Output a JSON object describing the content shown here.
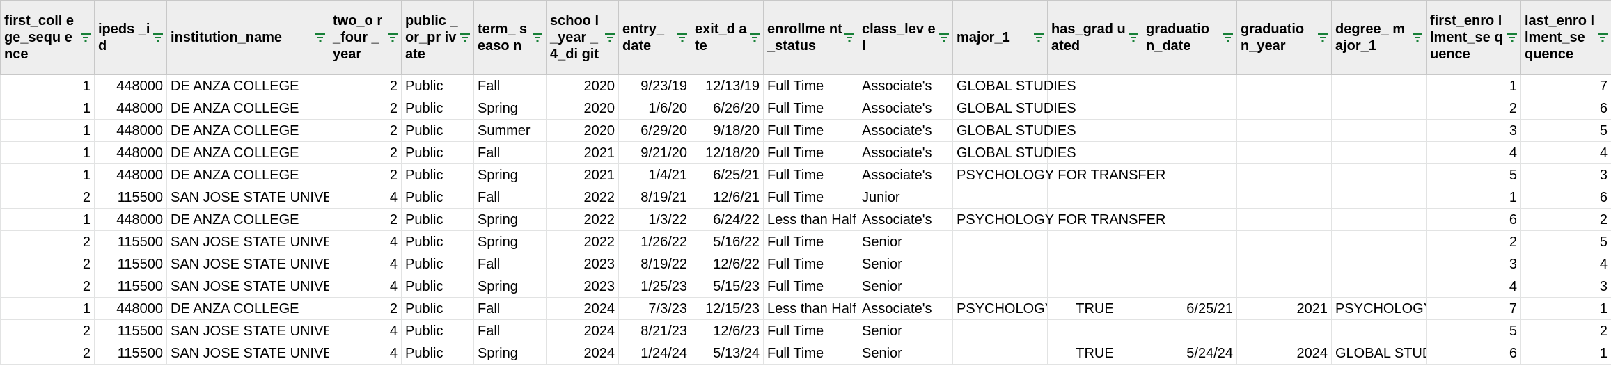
{
  "columns": [
    {
      "key": "first_college_sequence",
      "label": "first_coll ege_sequ ence",
      "align": "num"
    },
    {
      "key": "ipeds_id",
      "label": "ipeds _id",
      "align": "num"
    },
    {
      "key": "institution_name",
      "label": "institution_name",
      "align": "txt"
    },
    {
      "key": "two_or_four_year",
      "label": "two_o r_four _year",
      "align": "num"
    },
    {
      "key": "public_or_private",
      "label": "public _or_pr ivate",
      "align": "txt"
    },
    {
      "key": "term_season",
      "label": "term_ seaso n",
      "align": "txt"
    },
    {
      "key": "school_year_4_digit",
      "label": "schoo l_year _4_di git",
      "align": "num"
    },
    {
      "key": "entry_date",
      "label": "entry_ date",
      "align": "num"
    },
    {
      "key": "exit_date",
      "label": "exit_d ate",
      "align": "num"
    },
    {
      "key": "enrollment_status",
      "label": "enrollme nt_status",
      "align": "txt"
    },
    {
      "key": "class_level",
      "label": "class_lev el",
      "align": "txt"
    },
    {
      "key": "major_1",
      "label": "major_1",
      "align": "txt"
    },
    {
      "key": "has_graduated",
      "label": "has_grad uated",
      "align": "ctr"
    },
    {
      "key": "graduation_date",
      "label": "graduatio n_date",
      "align": "num"
    },
    {
      "key": "graduation_year",
      "label": "graduatio n_year",
      "align": "num"
    },
    {
      "key": "degree_major_1",
      "label": "degree_ major_1",
      "align": "txt"
    },
    {
      "key": "first_enrollment_sequence",
      "label": "first_enro llment_se quence",
      "align": "num"
    },
    {
      "key": "last_enrollment_sequence",
      "label": "last_enro llment_se quence",
      "align": "num"
    }
  ],
  "rows": [
    [
      "1",
      "448000",
      "DE ANZA COLLEGE",
      "2",
      "Public",
      "Fall",
      "2020",
      "9/23/19",
      "12/13/19",
      "Full Time",
      "Associate's",
      "GLOBAL STUDIES",
      "",
      "",
      "",
      "",
      "1",
      "7"
    ],
    [
      "1",
      "448000",
      "DE ANZA COLLEGE",
      "2",
      "Public",
      "Spring",
      "2020",
      "1/6/20",
      "6/26/20",
      "Full Time",
      "Associate's",
      "GLOBAL STUDIES",
      "",
      "",
      "",
      "",
      "2",
      "6"
    ],
    [
      "1",
      "448000",
      "DE ANZA COLLEGE",
      "2",
      "Public",
      "Summer",
      "2020",
      "6/29/20",
      "9/18/20",
      "Full Time",
      "Associate's",
      "GLOBAL STUDIES",
      "",
      "",
      "",
      "",
      "3",
      "5"
    ],
    [
      "1",
      "448000",
      "DE ANZA COLLEGE",
      "2",
      "Public",
      "Fall",
      "2021",
      "9/21/20",
      "12/18/20",
      "Full Time",
      "Associate's",
      "GLOBAL STUDIES",
      "",
      "",
      "",
      "",
      "4",
      "4"
    ],
    [
      "1",
      "448000",
      "DE ANZA COLLEGE",
      "2",
      "Public",
      "Spring",
      "2021",
      "1/4/21",
      "6/25/21",
      "Full Time",
      "Associate's",
      "PSYCHOLOGY FOR TRANSFER",
      "",
      "",
      "",
      "",
      "5",
      "3"
    ],
    [
      "2",
      "115500",
      "SAN JOSE STATE UNIVERSITY",
      "4",
      "Public",
      "Fall",
      "2022",
      "8/19/21",
      "12/6/21",
      "Full Time",
      "Junior",
      "",
      "",
      "",
      "",
      "",
      "1",
      "6"
    ],
    [
      "1",
      "448000",
      "DE ANZA COLLEGE",
      "2",
      "Public",
      "Spring",
      "2022",
      "1/3/22",
      "6/24/22",
      "Less than Half Time",
      "Associate's",
      "PSYCHOLOGY FOR TRANSFER",
      "",
      "",
      "",
      "",
      "6",
      "2"
    ],
    [
      "2",
      "115500",
      "SAN JOSE STATE UNIVERSITY",
      "4",
      "Public",
      "Spring",
      "2022",
      "1/26/22",
      "5/16/22",
      "Full Time",
      "Senior",
      "",
      "",
      "",
      "",
      "",
      "2",
      "5"
    ],
    [
      "2",
      "115500",
      "SAN JOSE STATE UNIVERSITY",
      "4",
      "Public",
      "Fall",
      "2023",
      "8/19/22",
      "12/6/22",
      "Full Time",
      "Senior",
      "",
      "",
      "",
      "",
      "",
      "3",
      "4"
    ],
    [
      "2",
      "115500",
      "SAN JOSE STATE UNIVERSITY",
      "4",
      "Public",
      "Spring",
      "2023",
      "1/25/23",
      "5/15/23",
      "Full Time",
      "Senior",
      "",
      "",
      "",
      "",
      "",
      "4",
      "3"
    ],
    [
      "1",
      "448000",
      "DE ANZA COLLEGE",
      "2",
      "Public",
      "Fall",
      "2024",
      "7/3/23",
      "12/15/23",
      "Less than Half Time",
      "Associate's",
      "PSYCHOLOGY FOR TRANSFER",
      "TRUE",
      "6/25/21",
      "2021",
      "PSYCHOLOGY FOR TRANSFER",
      "7",
      "1"
    ],
    [
      "2",
      "115500",
      "SAN JOSE STATE UNIVERSITY",
      "4",
      "Public",
      "Fall",
      "2024",
      "8/21/23",
      "12/6/23",
      "Full Time",
      "Senior",
      "",
      "",
      "",
      "",
      "",
      "5",
      "2"
    ],
    [
      "2",
      "115500",
      "SAN JOSE STATE UNIVERSITY",
      "4",
      "Public",
      "Spring",
      "2024",
      "1/24/24",
      "5/13/24",
      "Full Time",
      "Senior",
      "",
      "TRUE",
      "5/24/24",
      "2024",
      "GLOBAL STUDIES",
      "6",
      "1"
    ]
  ],
  "icons": {
    "filter": "filter-icon"
  },
  "colors": {
    "header_bg": "#eeeeee",
    "gridline": "#e2e3e3",
    "filter_icon": "#188038"
  }
}
